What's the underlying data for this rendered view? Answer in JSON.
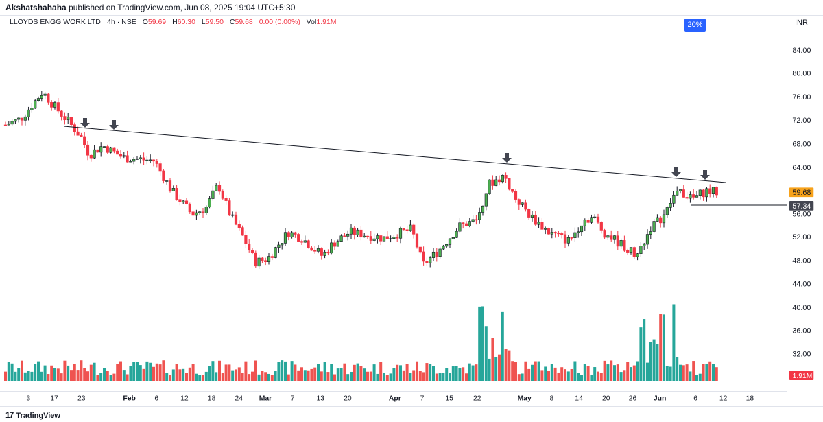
{
  "header": {
    "author": "Akshatshahaha",
    "published_text": "published on TradingView.com, Jun 08, 2025 19:04 UTC+5:30"
  },
  "legend": {
    "symbol": "LLOYDS ENGG WORK LTD · 4h · NSE",
    "open_label": "O",
    "open": "59.69",
    "high_label": "H",
    "high": "60.30",
    "low_label": "L",
    "low": "59.50",
    "close_label": "C",
    "close": "59.68",
    "change": "0.00 (0.00%)",
    "vol_label": "Vol",
    "volume": "1.91M"
  },
  "badge": {
    "percent": "20%"
  },
  "currency": "INR",
  "price_axis": {
    "ticks": [
      "84.00",
      "80.00",
      "76.00",
      "72.00",
      "68.00",
      "64.00",
      "56.00",
      "52.00",
      "48.00",
      "44.00",
      "40.00",
      "36.00",
      "32.00"
    ],
    "last_price": "59.68",
    "line_price": "57.34",
    "volume_label": "1.91M"
  },
  "time_axis": {
    "labels": [
      "3",
      "17",
      "23",
      "Feb",
      "6",
      "12",
      "18",
      "24",
      "Mar",
      "7",
      "13",
      "20",
      "Apr",
      "7",
      "15",
      "22",
      "May",
      "8",
      "14",
      "20",
      "26",
      "Jun",
      "6",
      "12",
      "18"
    ]
  },
  "footer": {
    "brand": "TradingView",
    "brand_mark": "17"
  },
  "colors": {
    "up": "#089981",
    "up_body": "#4caf50",
    "down": "#f23645",
    "volume_up": "#26a69a",
    "volume_down": "#ef5350",
    "trendline": "#131722",
    "last_price_bg": "#f7a21b",
    "line_price_bg": "#434651"
  },
  "chart_data": {
    "type": "candlestick",
    "symbol": "LLOYDS ENGG WORK LTD",
    "interval": "4h",
    "exchange": "NSE",
    "price_range": [
      44,
      84
    ],
    "annotations": [
      "downward trendline from ~70.5 to ~61.3",
      "horizontal line at 57.34",
      "5 down-arrow markers at trendline touches"
    ],
    "candles": [
      {
        "x": "3",
        "o": 70.2,
        "h": 71.5,
        "l": 69.5,
        "c": 71.0
      },
      {
        "x": "17",
        "o": 73.5,
        "h": 77.0,
        "l": 72.0,
        "c": 76.5
      },
      {
        "x": "23",
        "o": 71.0,
        "h": 72.0,
        "l": 61.0,
        "c": 65.0
      },
      {
        "x": "Feb",
        "o": 67.0,
        "h": 69.0,
        "l": 65.0,
        "c": 68.0
      },
      {
        "x": "12",
        "o": 66.0,
        "h": 67.0,
        "l": 60.0,
        "c": 61.0
      },
      {
        "x": "24",
        "o": 59.0,
        "h": 61.0,
        "l": 53.0,
        "c": 54.0
      },
      {
        "x": "Mar",
        "o": 50.0,
        "h": 51.0,
        "l": 45.5,
        "c": 47.0
      },
      {
        "x": "Apr",
        "o": 46.0,
        "h": 50.0,
        "l": 46.0,
        "c": 49.0
      },
      {
        "x": "22",
        "o": 58.0,
        "h": 63.5,
        "l": 57.0,
        "c": 62.0
      },
      {
        "x": "May",
        "o": 55.0,
        "h": 56.0,
        "l": 52.0,
        "c": 53.0
      },
      {
        "x": "26",
        "o": 49.0,
        "h": 53.0,
        "l": 48.5,
        "c": 52.5
      },
      {
        "x": "Jun",
        "o": 59.69,
        "h": 60.3,
        "l": 59.5,
        "c": 59.68
      }
    ]
  }
}
